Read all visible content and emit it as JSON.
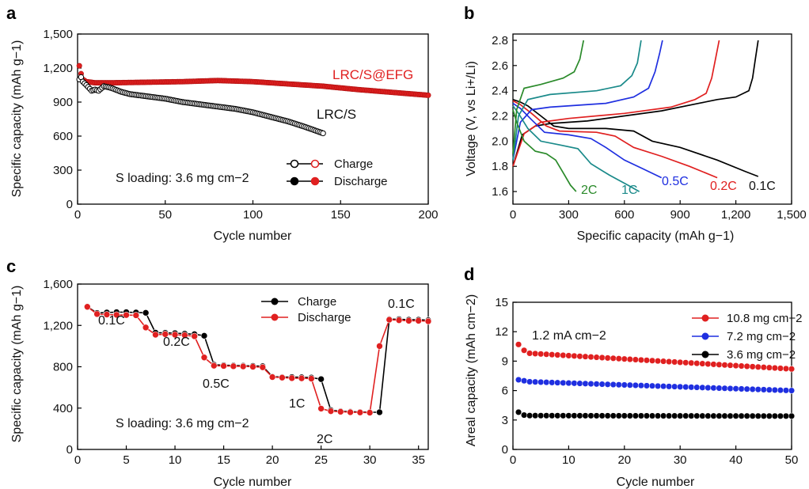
{
  "chart_data": [
    {
      "panel": "a",
      "type": "scatter",
      "xlabel": "Cycle number",
      "ylabel": "Specific capacity (mAh g−1)",
      "xlim": [
        0,
        200
      ],
      "ylim": [
        0,
        1500
      ],
      "xticks": [
        "0",
        "50",
        "100",
        "150",
        "200"
      ],
      "yticks": [
        "0",
        "300",
        "600",
        "900",
        "1,200",
        "1,500"
      ],
      "series": [
        {
          "name": "LRC/S",
          "color": "#000000",
          "type": "line",
          "points": [
            [
              1,
              1100
            ],
            [
              2,
              1120
            ],
            [
              3,
              1080
            ],
            [
              5,
              1050
            ],
            [
              8,
              1000
            ],
            [
              10,
              1010
            ],
            [
              12,
              1000
            ],
            [
              15,
              1040
            ],
            [
              18,
              1030
            ],
            [
              20,
              1020
            ],
            [
              25,
              990
            ],
            [
              30,
              970
            ],
            [
              40,
              950
            ],
            [
              50,
              930
            ],
            [
              60,
              900
            ],
            [
              70,
              880
            ],
            [
              80,
              860
            ],
            [
              90,
              840
            ],
            [
              100,
              810
            ],
            [
              110,
              770
            ],
            [
              120,
              730
            ],
            [
              130,
              680
            ],
            [
              140,
              625
            ]
          ]
        },
        {
          "name": "LRC/S@EFG",
          "color": "#e02020",
          "type": "line",
          "points": [
            [
              1,
              1220
            ],
            [
              2,
              1150
            ],
            [
              3,
              1100
            ],
            [
              5,
              1080
            ],
            [
              10,
              1070
            ],
            [
              20,
              1070
            ],
            [
              40,
              1075
            ],
            [
              60,
              1080
            ],
            [
              80,
              1090
            ],
            [
              100,
              1080
            ],
            [
              120,
              1060
            ],
            [
              140,
              1040
            ],
            [
              160,
              1010
            ],
            [
              180,
              985
            ],
            [
              200,
              960
            ]
          ]
        }
      ],
      "annotations": {
        "red_label": "LRC/S@EFG",
        "black_label": "LRC/S",
        "loading": "S loading: 3.6 mg cm−2"
      },
      "legend": {
        "items": [
          "Charge",
          "Discharge"
        ],
        "placement": "bottom-right"
      }
    },
    {
      "panel": "b",
      "type": "line",
      "xlabel": "Specific capacity (mAh g−1)",
      "ylabel": "Voltage (V, vs Li+/Li)",
      "xlim": [
        0,
        1500
      ],
      "ylim": [
        1.5,
        2.85
      ],
      "xticks": [
        "0",
        "300",
        "600",
        "900",
        "1,200",
        "1,500"
      ],
      "yticks": [
        "1.6",
        "1.8",
        "2.0",
        "2.2",
        "2.4",
        "2.6",
        "2.8"
      ],
      "series": [
        {
          "name": "0.1C",
          "color": "#000000",
          "discharge": [
            [
              0,
              2.33
            ],
            [
              40,
              2.31
            ],
            [
              80,
              2.28
            ],
            [
              150,
              2.2
            ],
            [
              220,
              2.12
            ],
            [
              300,
              2.1
            ],
            [
              500,
              2.1
            ],
            [
              650,
              2.08
            ],
            [
              750,
              2.0
            ],
            [
              900,
              1.95
            ],
            [
              1100,
              1.85
            ],
            [
              1250,
              1.76
            ],
            [
              1320,
              1.72
            ]
          ],
          "charge": [
            [
              0,
              1.8
            ],
            [
              50,
              2.05
            ],
            [
              120,
              2.12
            ],
            [
              200,
              2.14
            ],
            [
              400,
              2.16
            ],
            [
              800,
              2.24
            ],
            [
              1000,
              2.3
            ],
            [
              1100,
              2.33
            ],
            [
              1200,
              2.35
            ],
            [
              1270,
              2.4
            ],
            [
              1290,
              2.5
            ],
            [
              1305,
              2.65
            ],
            [
              1320,
              2.8
            ]
          ]
        },
        {
          "name": "0.2C",
          "color": "#e02020",
          "discharge": [
            [
              0,
              2.32
            ],
            [
              40,
              2.29
            ],
            [
              100,
              2.22
            ],
            [
              180,
              2.12
            ],
            [
              250,
              2.08
            ],
            [
              450,
              2.07
            ],
            [
              550,
              2.04
            ],
            [
              650,
              1.95
            ],
            [
              800,
              1.88
            ],
            [
              950,
              1.8
            ],
            [
              1100,
              1.71
            ]
          ],
          "charge": [
            [
              0,
              1.8
            ],
            [
              60,
              2.06
            ],
            [
              150,
              2.15
            ],
            [
              300,
              2.18
            ],
            [
              600,
              2.22
            ],
            [
              850,
              2.27
            ],
            [
              980,
              2.33
            ],
            [
              1040,
              2.38
            ],
            [
              1070,
              2.5
            ],
            [
              1090,
              2.65
            ],
            [
              1110,
              2.8
            ]
          ]
        },
        {
          "name": "0.5C",
          "color": "#1f2fe0",
          "discharge": [
            [
              0,
              2.3
            ],
            [
              40,
              2.26
            ],
            [
              100,
              2.17
            ],
            [
              170,
              2.07
            ],
            [
              300,
              2.05
            ],
            [
              420,
              2.02
            ],
            [
              500,
              1.95
            ],
            [
              600,
              1.85
            ],
            [
              700,
              1.78
            ],
            [
              800,
              1.71
            ]
          ],
          "charge": [
            [
              0,
              1.85
            ],
            [
              40,
              2.15
            ],
            [
              100,
              2.25
            ],
            [
              200,
              2.27
            ],
            [
              500,
              2.3
            ],
            [
              650,
              2.35
            ],
            [
              730,
              2.42
            ],
            [
              765,
              2.55
            ],
            [
              790,
              2.7
            ],
            [
              805,
              2.8
            ]
          ]
        },
        {
          "name": "1C",
          "color": "#1a8a8a",
          "discharge": [
            [
              0,
              2.28
            ],
            [
              30,
              2.22
            ],
            [
              80,
              2.1
            ],
            [
              150,
              2.0
            ],
            [
              250,
              1.97
            ],
            [
              350,
              1.94
            ],
            [
              420,
              1.82
            ],
            [
              520,
              1.73
            ],
            [
              620,
              1.65
            ],
            [
              680,
              1.6
            ]
          ],
          "charge": [
            [
              0,
              1.85
            ],
            [
              30,
              2.2
            ],
            [
              80,
              2.33
            ],
            [
              200,
              2.37
            ],
            [
              450,
              2.4
            ],
            [
              580,
              2.44
            ],
            [
              640,
              2.52
            ],
            [
              670,
              2.62
            ],
            [
              690,
              2.8
            ]
          ]
        },
        {
          "name": "2C",
          "color": "#2a8a2a",
          "discharge": [
            [
              0,
              2.25
            ],
            [
              20,
              2.15
            ],
            [
              60,
              2.0
            ],
            [
              120,
              1.92
            ],
            [
              180,
              1.9
            ],
            [
              230,
              1.85
            ],
            [
              270,
              1.75
            ],
            [
              310,
              1.65
            ],
            [
              340,
              1.6
            ]
          ],
          "charge": [
            [
              0,
              1.9
            ],
            [
              20,
              2.25
            ],
            [
              60,
              2.42
            ],
            [
              150,
              2.45
            ],
            [
              270,
              2.5
            ],
            [
              330,
              2.55
            ],
            [
              360,
              2.65
            ],
            [
              380,
              2.8
            ]
          ]
        }
      ],
      "labels": [
        "2C",
        "1C",
        "0.5C",
        "0.2C",
        "0.1C"
      ]
    },
    {
      "panel": "c",
      "type": "line",
      "xlabel": "Cycle number",
      "ylabel": "Specific capacity (mAh g−1)",
      "xlim": [
        0,
        36
      ],
      "ylim": [
        0,
        1600
      ],
      "xticks": [
        "0",
        "5",
        "10",
        "15",
        "20",
        "25",
        "30",
        "35"
      ],
      "yticks": [
        "0",
        "400",
        "800",
        "1,200",
        "1,600"
      ],
      "series": [
        {
          "name": "Charge",
          "color": "#000000",
          "x": [
            1,
            2,
            3,
            4,
            5,
            6,
            7,
            8,
            9,
            10,
            11,
            12,
            13,
            14,
            15,
            16,
            17,
            18,
            19,
            20,
            21,
            22,
            23,
            24,
            25,
            26,
            27,
            28,
            29,
            30,
            31,
            32,
            33,
            34,
            35,
            36
          ],
          "values": [
            1380,
            1320,
            1325,
            1328,
            1328,
            1325,
            1322,
            1130,
            1128,
            1125,
            1120,
            1115,
            1100,
            820,
            815,
            812,
            810,
            808,
            805,
            705,
            700,
            700,
            698,
            695,
            680,
            380,
            370,
            365,
            362,
            360,
            360,
            1260,
            1260,
            1255,
            1255,
            1250
          ]
        },
        {
          "name": "Discharge",
          "color": "#e02020",
          "x": [
            1,
            2,
            3,
            4,
            5,
            6,
            7,
            8,
            9,
            10,
            11,
            12,
            13,
            14,
            15,
            16,
            17,
            18,
            19,
            20,
            21,
            22,
            23,
            24,
            25,
            26,
            27,
            28,
            29,
            30,
            31,
            32,
            33,
            34,
            35,
            36
          ],
          "values": [
            1380,
            1310,
            1305,
            1302,
            1300,
            1298,
            1180,
            1110,
            1115,
            1110,
            1105,
            1095,
            890,
            810,
            808,
            805,
            803,
            800,
            795,
            700,
            695,
            690,
            688,
            685,
            395,
            370,
            365,
            360,
            358,
            356,
            1000,
            1255,
            1250,
            1245,
            1245,
            1240
          ]
        }
      ],
      "rate_labels": [
        "0.1C",
        "0.2C",
        "0.5C",
        "1C",
        "2C",
        "0.1C"
      ],
      "annotation": "S loading: 3.6 mg cm−2",
      "legend": {
        "items": [
          "Charge",
          "Discharge"
        ],
        "placement": "top-right"
      }
    },
    {
      "panel": "d",
      "type": "scatter",
      "xlabel": "Cycle number",
      "ylabel": "Areal capacity (mAh cm−2)",
      "xlim": [
        0,
        50
      ],
      "ylim": [
        0,
        15
      ],
      "xticks": [
        "0",
        "10",
        "20",
        "30",
        "40",
        "50"
      ],
      "yticks": [
        "0",
        "3",
        "6",
        "9",
        "12",
        "15"
      ],
      "series": [
        {
          "name": "10.8 mg cm−2",
          "color": "#e02020",
          "start": 10.7,
          "second": 10.1,
          "third": 9.8,
          "end": 8.2
        },
        {
          "name": "7.2 mg cm−2",
          "color": "#1f2fe0",
          "start": 7.1,
          "second": 7.0,
          "third": 6.9,
          "end": 6.0
        },
        {
          "name": "3.6 mg cm−2",
          "color": "#000000",
          "start": 3.8,
          "second": 3.5,
          "third": 3.45,
          "end": 3.4
        }
      ],
      "annotation": "1.2 mA cm−2",
      "legend": {
        "placement": "top-right"
      }
    }
  ],
  "panel_letters": [
    "a",
    "b",
    "c",
    "d"
  ]
}
